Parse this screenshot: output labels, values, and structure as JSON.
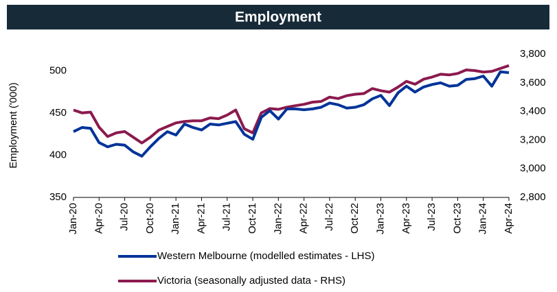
{
  "chart_data": {
    "type": "line",
    "title": "Employment",
    "y_label": "Employment ('000)",
    "categories": [
      "Jan-20",
      null,
      null,
      "Apr-20",
      null,
      null,
      "Jul-20",
      null,
      null,
      "Oct-20",
      null,
      null,
      "Jan-21",
      null,
      null,
      "Apr-21",
      null,
      null,
      "Jul-21",
      null,
      null,
      "Oct-21",
      null,
      null,
      "Jan-22",
      null,
      null,
      "Apr-22",
      null,
      null,
      "Jul-22",
      null,
      null,
      "Oct-22",
      null,
      null,
      "Jan-23",
      null,
      null,
      "Apr-23",
      null,
      null,
      "Jul-23",
      null,
      null,
      "Oct-23",
      null,
      null,
      "Jan-24",
      null,
      null,
      "Apr-24"
    ],
    "series": [
      {
        "name": "Western Melbourne (modelled estimates - LHS)",
        "color": "#003399",
        "axis": "y",
        "values": [
          428,
          433,
          432,
          415,
          410,
          413,
          412,
          404,
          399,
          410,
          420,
          428,
          424,
          437,
          433,
          430,
          437,
          436,
          438,
          440,
          425,
          419,
          445,
          453,
          443,
          455,
          455,
          454,
          455,
          457,
          462,
          460,
          456,
          457,
          460,
          467,
          471,
          459,
          474,
          482,
          475,
          481,
          484,
          486,
          482,
          483,
          490,
          491,
          494,
          482,
          499,
          498
        ]
      },
      {
        "name": "Victoria (seasonally adjusted data - RHS)",
        "color": "#8b1a4e",
        "axis": "y2",
        "values": [
          3410,
          3390,
          3395,
          3290,
          3225,
          3250,
          3260,
          3220,
          3180,
          3220,
          3270,
          3295,
          3320,
          3330,
          3335,
          3335,
          3355,
          3350,
          3375,
          3410,
          3280,
          3250,
          3390,
          3420,
          3415,
          3430,
          3440,
          3450,
          3465,
          3470,
          3500,
          3490,
          3510,
          3520,
          3525,
          3560,
          3545,
          3535,
          3570,
          3610,
          3590,
          3625,
          3640,
          3660,
          3655,
          3665,
          3690,
          3685,
          3675,
          3680,
          3700,
          3720
        ]
      }
    ],
    "ylim": [
      350,
      520
    ],
    "yticks": [
      350,
      400,
      450,
      500
    ],
    "y2lim": [
      2800,
      3800
    ],
    "y2ticks": [
      {
        "value": 2800,
        "label": "2,800"
      },
      {
        "value": 3000,
        "label": "3,000"
      },
      {
        "value": 3200,
        "label": "3,200"
      },
      {
        "value": 3400,
        "label": "3,400"
      },
      {
        "value": 3600,
        "label": "3,600"
      },
      {
        "value": 3800,
        "label": "3,800"
      }
    ],
    "legend": "bottom",
    "grid": false
  }
}
